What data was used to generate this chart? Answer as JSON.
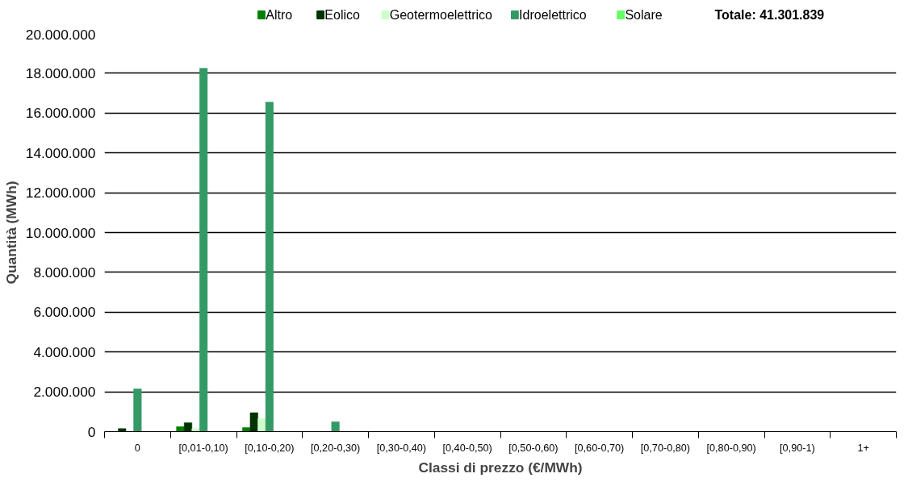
{
  "chart_data": {
    "type": "bar",
    "xlabel": "Classi di prezzo (€/MWh)",
    "ylabel": "Quantità (MWh)",
    "categories": [
      "0",
      "[0,01-0,10)",
      "[0,10-0,20)",
      "[0,20-0,30)",
      "[0,30-0,40)",
      "[0,40-0,50)",
      "[0,50-0,60)",
      "[0,60-0,70)",
      "[0,70-0,80)",
      "[0,80-0,90)",
      "[0,90-1)",
      "1+"
    ],
    "series": [
      {
        "name": "Altro",
        "color": "#008000",
        "values": [
          null,
          250000,
          200000,
          null,
          null,
          null,
          null,
          null,
          null,
          null,
          null,
          null
        ]
      },
      {
        "name": "Eolico",
        "color": "#003300",
        "values": [
          150000,
          450000,
          950000,
          null,
          null,
          null,
          null,
          null,
          null,
          null,
          null,
          null
        ]
      },
      {
        "name": "Geotermoelettrico",
        "color": "#ccffcc",
        "values": [
          null,
          150000,
          650000,
          null,
          null,
          null,
          null,
          null,
          null,
          null,
          null,
          null
        ]
      },
      {
        "name": "Idroelettrico",
        "color": "#339966",
        "values": [
          2150000,
          18250000,
          16550000,
          500000,
          null,
          null,
          null,
          null,
          null,
          null,
          null,
          null
        ]
      },
      {
        "name": "Solare",
        "color": "#66ff66",
        "values": [
          null,
          0,
          0,
          null,
          null,
          null,
          null,
          null,
          null,
          null,
          null,
          null
        ]
      }
    ],
    "ylim": [
      0,
      20000000
    ],
    "yticks": [
      {
        "value": 0,
        "label": "0"
      },
      {
        "value": 2000000,
        "label": "2.000.000"
      },
      {
        "value": 4000000,
        "label": "4.000.000"
      },
      {
        "value": 6000000,
        "label": "6.000.000"
      },
      {
        "value": 8000000,
        "label": "8.000.000"
      },
      {
        "value": 10000000,
        "label": "10.000.000"
      },
      {
        "value": 12000000,
        "label": "12.000.000"
      },
      {
        "value": 14000000,
        "label": "14.000.000"
      },
      {
        "value": 16000000,
        "label": "16.000.000"
      },
      {
        "value": 18000000,
        "label": "18.000.000"
      },
      {
        "value": 20000000,
        "label": "20.000.000"
      }
    ],
    "grid": "y",
    "legend": "top",
    "annotations": [
      "Totale:   41.301.839"
    ]
  }
}
